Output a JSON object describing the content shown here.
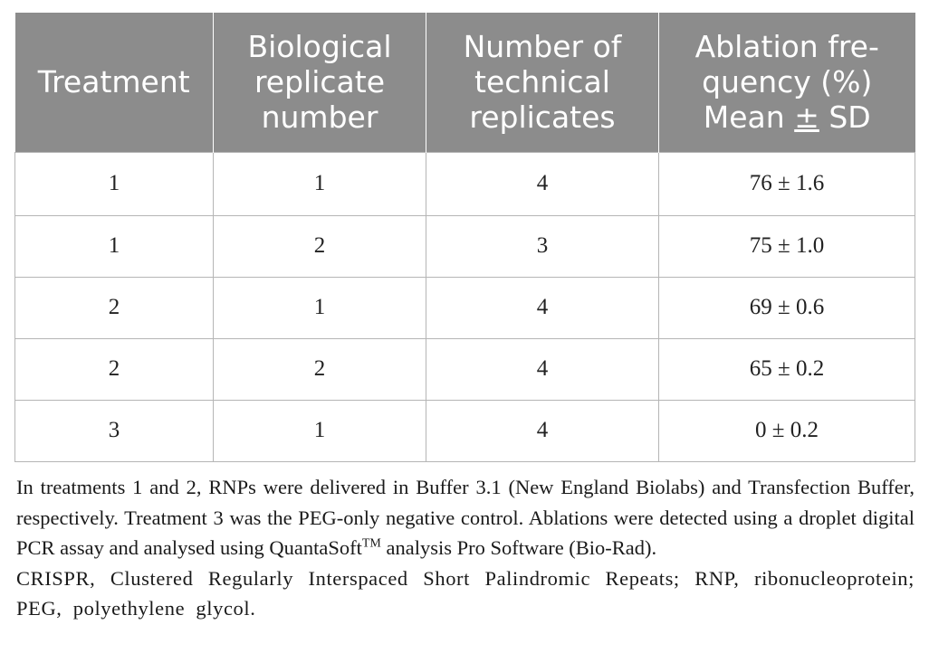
{
  "table": {
    "headers": [
      [
        "Treatment"
      ],
      [
        "Biological",
        "replicate",
        "number"
      ],
      [
        "Number of",
        "technical",
        "replicates"
      ],
      [
        "Ablation fre-",
        "quency (%)",
        "Mean ± SD"
      ]
    ],
    "rows": [
      [
        "1",
        "1",
        "4",
        "76 ± 1.6"
      ],
      [
        "1",
        "2",
        "3",
        "75 ± 1.0"
      ],
      [
        "2",
        "1",
        "4",
        "69 ± 0.6"
      ],
      [
        "2",
        "2",
        "4",
        "65 ± 0.2"
      ],
      [
        "3",
        "1",
        "4",
        "0 ± 0.2"
      ]
    ]
  },
  "notes": {
    "note1_main": "In treatments 1 and 2, RNPs were delivered in Buffer 3.1 (New England Biolabs) and Transfection Buffer, respectively. Treatment 3 was the PEG-only negative control. Ablations were detected using a droplet digital PCR assay and analysed using QuantaSoft",
    "note1_trademark": "TM",
    "note1_tail": " analysis Pro Software (Bio-Rad).",
    "note2": "CRISPR, Clustered Regularly Interspaced Short Palindromic Repeats; RNP, ribonucleoprotein; PEG, polyethylene glycol."
  },
  "colors": {
    "header_background": "#8c8c8c",
    "header_text": "#ffffff",
    "border": "#b5b5b5",
    "body_text": "#222222"
  }
}
